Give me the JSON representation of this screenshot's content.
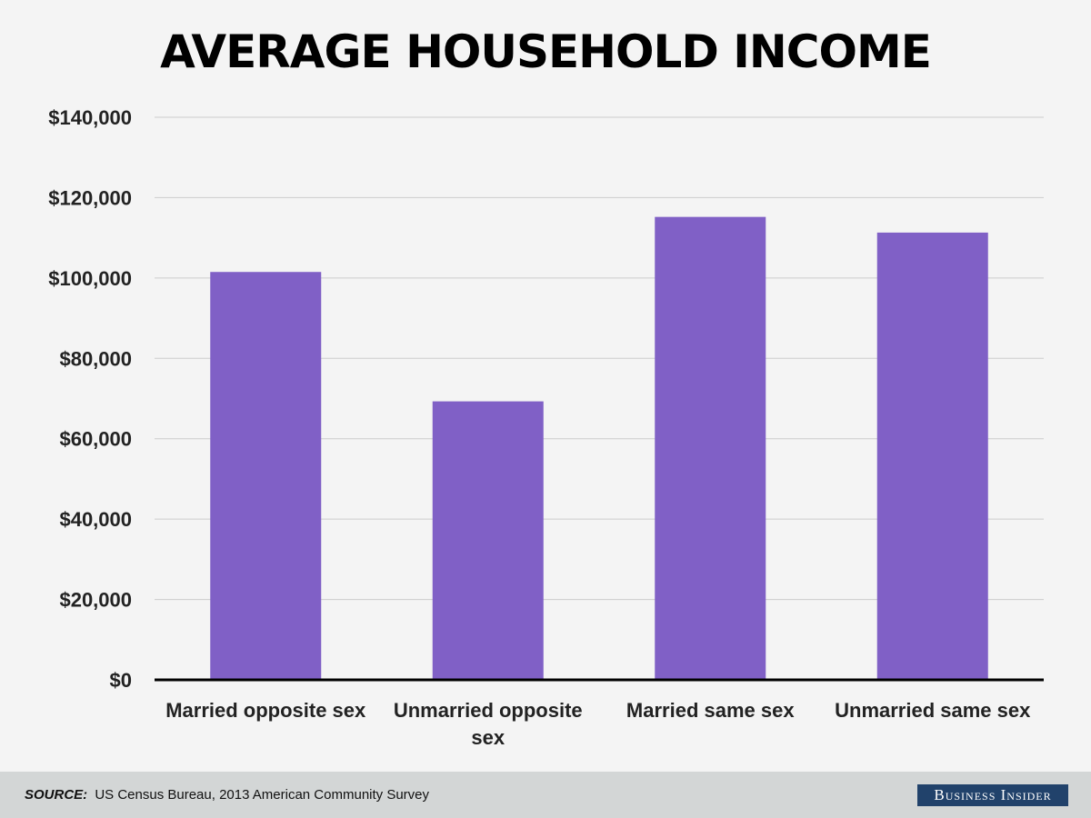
{
  "colors": {
    "bar": "#8060c6",
    "grid": "#cccccc",
    "axis": "#000000",
    "background": "#f4f4f4",
    "footer": "#d3d6d6",
    "logo_bg": "#21426b"
  },
  "chart_data": {
    "type": "bar",
    "title": "AVERAGE HOUSEHOLD INCOME",
    "categories": [
      [
        "Married opposite sex"
      ],
      [
        "Unmarried opposite",
        "sex"
      ],
      [
        "Married same sex"
      ],
      [
        "Unmarried same sex"
      ]
    ],
    "values": [
      101500,
      69300,
      115200,
      111300
    ],
    "ylim": [
      0,
      140000
    ],
    "yticks": [
      0,
      20000,
      40000,
      60000,
      80000,
      100000,
      120000,
      140000
    ],
    "ytick_labels": [
      "$0",
      "$20,000",
      "$40,000",
      "$60,000",
      "$80,000",
      "$100,000",
      "$120,000",
      "$140,000"
    ],
    "grid": true,
    "xlabel": "",
    "ylabel": ""
  },
  "footer": {
    "source_label": "SOURCE:",
    "source_text": "US Census Bureau, 2013 American Community Survey",
    "logo_text": "Business Insider"
  }
}
